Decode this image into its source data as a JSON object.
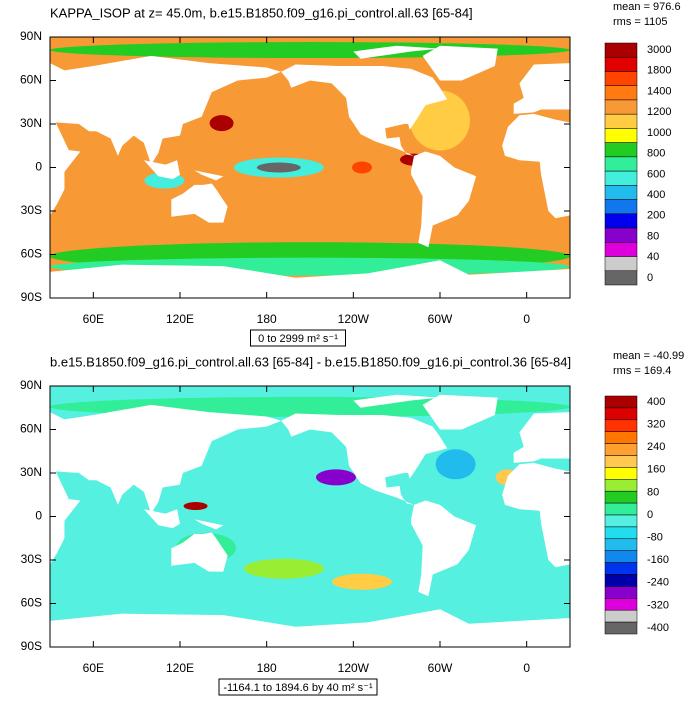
{
  "panels": [
    {
      "title": "KAPPA_ISOP at z=  45.0m, b.e15.B1850.f09_g16.pi_control.all.63 [65-84]",
      "stats": [
        "mean = 976.6",
        "rms = 1105"
      ],
      "lat_labels": [
        "90N",
        "60N",
        "30N",
        "0",
        "30S",
        "60S",
        "90S"
      ],
      "lon_labels": [
        "60E",
        "120E",
        "180",
        "120W",
        "60W",
        "0"
      ],
      "colorbar": {
        "labels": [
          "3000",
          "1800",
          "1400",
          "1200",
          "1000",
          "800",
          "600",
          "400",
          "200",
          "80",
          "40",
          "0"
        ],
        "colors": [
          "#aa0000",
          "#e00000",
          "#ff4400",
          "#ff7a10",
          "#f79a35",
          "#ffcc44",
          "#ffff00",
          "#22cc22",
          "#33ee99",
          "#44eedd",
          "#22bbee",
          "#1177ee",
          "#0000ee",
          "#8800cc",
          "#dd00dd",
          "#cccccc",
          "#666666"
        ]
      },
      "range_label": "0 to 2999 m² s⁻¹"
    },
    {
      "title": "b.e15.B1850.f09_g16.pi_control.all.63 [65-84] - b.e15.B1850.f09_g16.pi_control.36 [65-84]",
      "stats": [
        "mean = -40.99",
        "rms = 169.4"
      ],
      "lat_labels": [
        "90N",
        "60N",
        "30N",
        "0",
        "30S",
        "60S",
        "90S"
      ],
      "lon_labels": [
        "60E",
        "120E",
        "180",
        "120W",
        "60W",
        "0"
      ],
      "colorbar": {
        "labels": [
          "400",
          "320",
          "240",
          "160",
          "80",
          "0",
          "-80",
          "-160",
          "-240",
          "-320",
          "-400"
        ],
        "colors": [
          "#aa0000",
          "#dd0000",
          "#ff3300",
          "#ff7700",
          "#ffa030",
          "#ffc850",
          "#ffff00",
          "#99ee33",
          "#22cc22",
          "#33ee99",
          "#55f0e0",
          "#22ddee",
          "#22bbee",
          "#1188ee",
          "#0033ee",
          "#0000aa",
          "#8800cc",
          "#dd00dd",
          "#cccccc",
          "#666666"
        ]
      },
      "range_label": "-1164.1 to 1894.6 by 40 m² s⁻¹"
    }
  ]
}
